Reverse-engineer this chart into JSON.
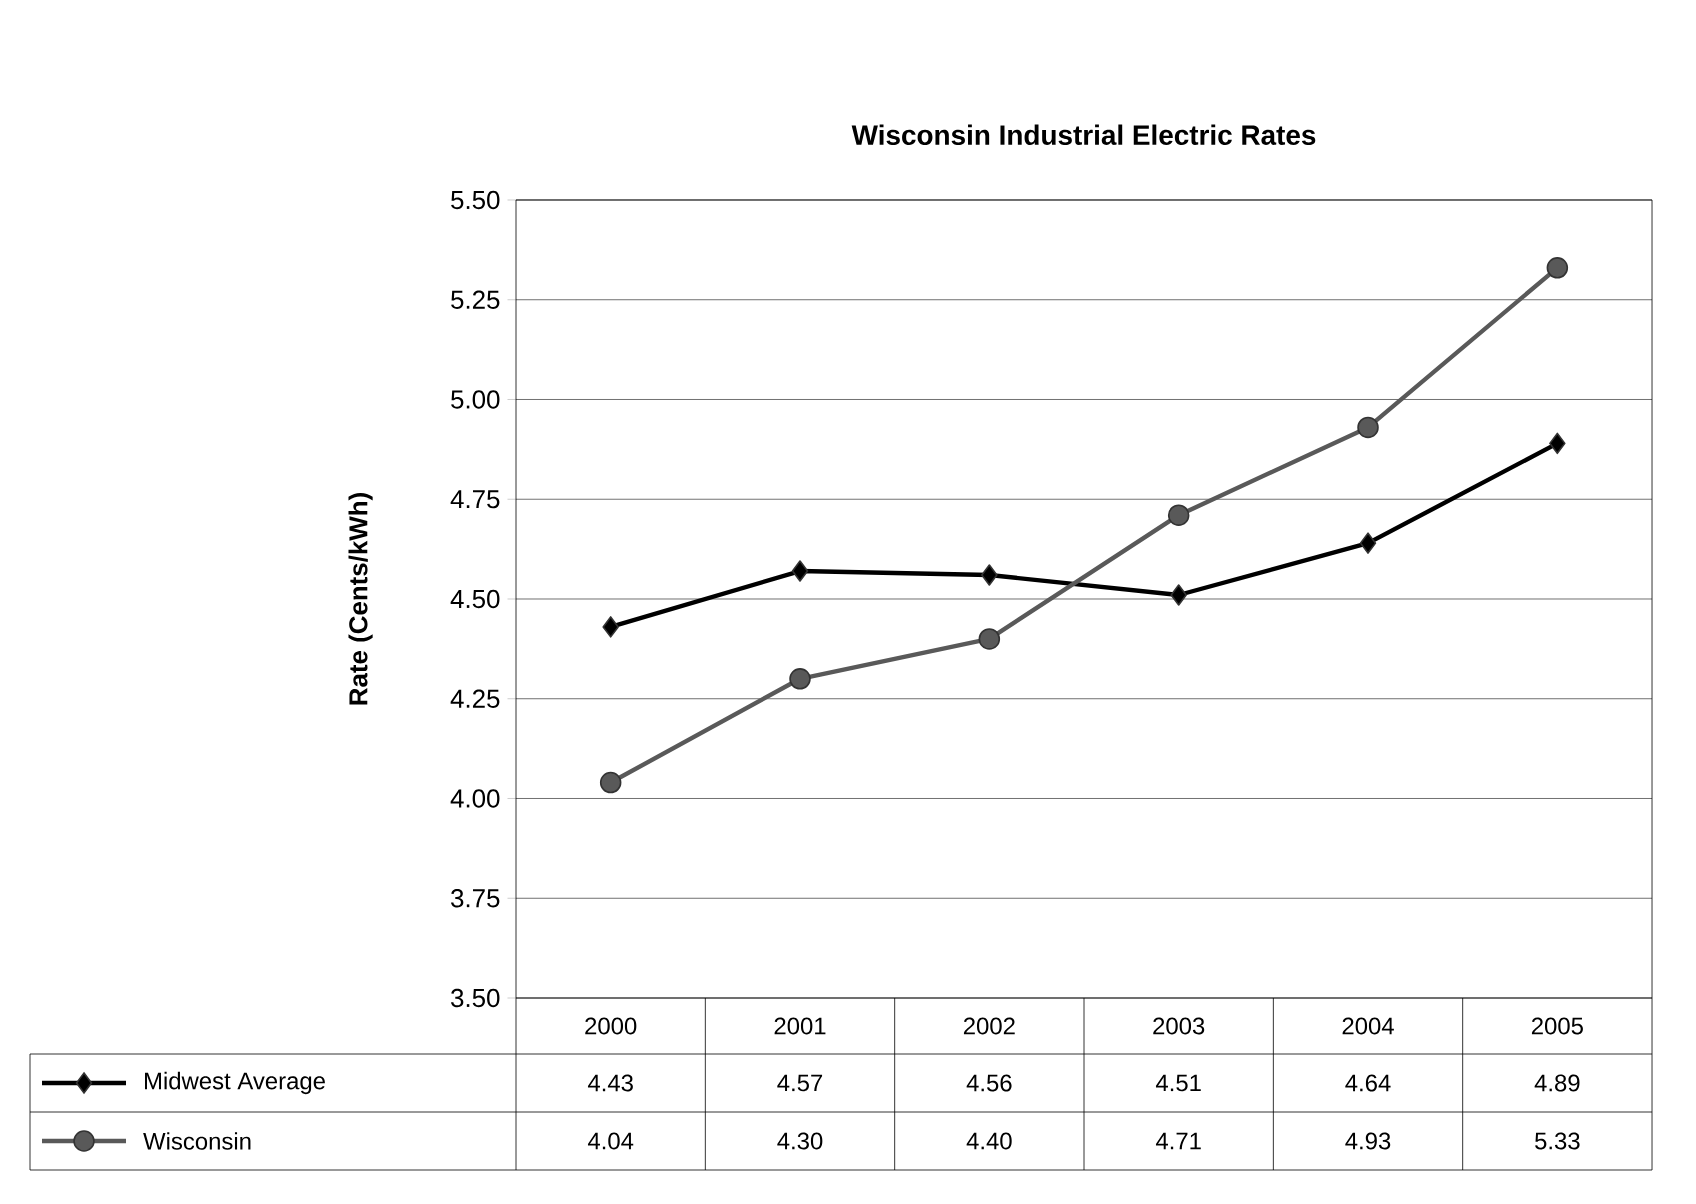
{
  "chart_data": {
    "type": "line",
    "title": "Wisconsin Industrial Electric Rates",
    "ylabel": "Rate (Cents/kWh)",
    "categories": [
      "2000",
      "2001",
      "2002",
      "2003",
      "2004",
      "2005"
    ],
    "series": [
      {
        "name": "Midwest Average",
        "color": "#000000",
        "marker": "diamond",
        "values": [
          4.43,
          4.57,
          4.56,
          4.51,
          4.64,
          4.89
        ],
        "value_labels": [
          "4.43",
          "4.57",
          "4.56",
          "4.51",
          "4.64",
          "4.89"
        ]
      },
      {
        "name": "Wisconsin",
        "color": "#595959",
        "marker": "circle",
        "values": [
          4.04,
          4.3,
          4.4,
          4.71,
          4.93,
          5.33
        ],
        "value_labels": [
          "4.04",
          "4.30",
          "4.40",
          "4.71",
          "4.93",
          "5.33"
        ]
      }
    ],
    "ylim": [
      3.5,
      5.5
    ],
    "yticks": [
      {
        "value": 3.5,
        "label": "3.50"
      },
      {
        "value": 3.75,
        "label": "3.75"
      },
      {
        "value": 4.0,
        "label": "4.00"
      },
      {
        "value": 4.25,
        "label": "4.25"
      },
      {
        "value": 4.5,
        "label": "4.50"
      },
      {
        "value": 4.75,
        "label": "4.75"
      },
      {
        "value": 5.0,
        "label": "5.00"
      },
      {
        "value": 5.25,
        "label": "5.25"
      },
      {
        "value": 5.5,
        "label": "5.50"
      }
    ],
    "grid": "y",
    "legend": "bottom",
    "line_style": "solid"
  }
}
